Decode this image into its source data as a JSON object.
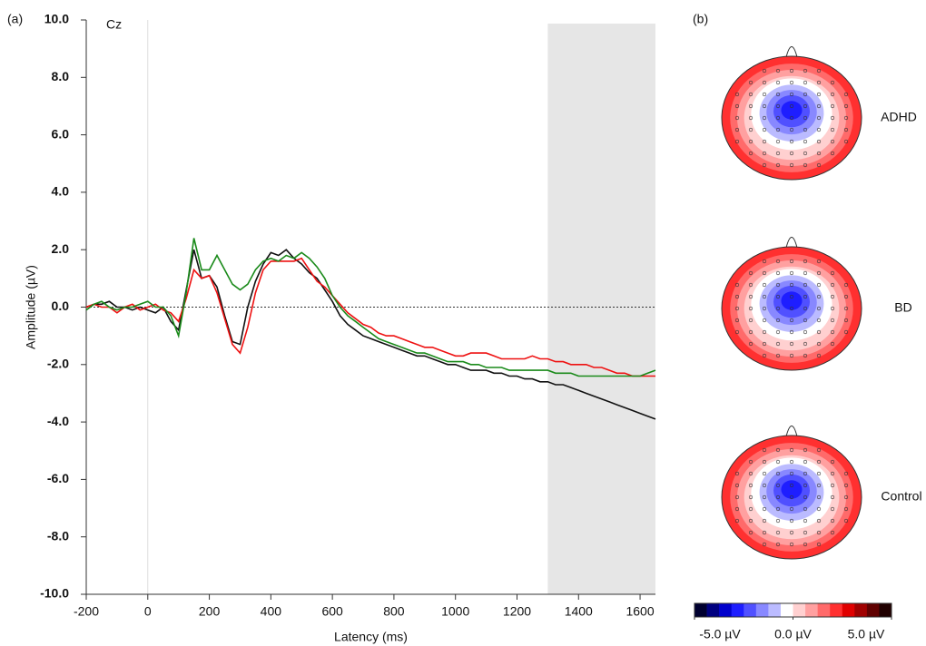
{
  "chart_data": [
    {
      "type": "line",
      "panel_label": "(a)",
      "annotation": "Cz",
      "xlabel": "Latency (ms)",
      "ylabel": "Amplitude (µV)",
      "x": [
        -200,
        -175,
        -150,
        -125,
        -100,
        -75,
        -50,
        -25,
        0,
        25,
        50,
        75,
        100,
        125,
        150,
        175,
        200,
        225,
        250,
        275,
        300,
        325,
        350,
        375,
        400,
        425,
        450,
        475,
        500,
        525,
        550,
        575,
        600,
        625,
        650,
        675,
        700,
        725,
        750,
        775,
        800,
        825,
        850,
        875,
        900,
        925,
        950,
        975,
        1000,
        1025,
        1050,
        1075,
        1100,
        1125,
        1150,
        1175,
        1200,
        1225,
        1250,
        1275,
        1300,
        1325,
        1350,
        1375,
        1400,
        1425,
        1450,
        1475,
        1500,
        1525,
        1550,
        1575,
        1600,
        1625,
        1650
      ],
      "series": [
        {
          "color": "#111111",
          "values": [
            0,
            0.1,
            0.1,
            0.2,
            0,
            0,
            -0.1,
            0,
            -0.1,
            -0.2,
            0,
            -0.5,
            -0.8,
            0.6,
            2.0,
            1.0,
            1.1,
            0.7,
            -0.3,
            -1.2,
            -1.3,
            0,
            0.9,
            1.5,
            1.9,
            1.8,
            2.0,
            1.7,
            1.5,
            1.2,
            1.0,
            0.6,
            0.2,
            -0.3,
            -0.6,
            -0.8,
            -1.0,
            -1.1,
            -1.2,
            -1.3,
            -1.4,
            -1.5,
            -1.6,
            -1.7,
            -1.7,
            -1.8,
            -1.9,
            -2.0,
            -2.0,
            -2.1,
            -2.2,
            -2.2,
            -2.2,
            -2.3,
            -2.3,
            -2.4,
            -2.4,
            -2.5,
            -2.5,
            -2.6,
            -2.6,
            -2.7,
            -2.7,
            -2.8,
            -2.9,
            -3.0,
            -3.1,
            -3.2,
            -3.3,
            -3.4,
            -3.5,
            -3.6,
            -3.7,
            -3.8,
            -3.9
          ]
        },
        {
          "color": "#ee1111",
          "values": [
            0,
            0.1,
            0,
            0,
            -0.2,
            0,
            0.1,
            -0.1,
            0,
            0.1,
            -0.1,
            -0.2,
            -0.5,
            0.3,
            1.3,
            1.0,
            1.1,
            0.5,
            -0.4,
            -1.3,
            -1.6,
            -0.7,
            0.5,
            1.3,
            1.6,
            1.6,
            1.6,
            1.6,
            1.7,
            1.3,
            0.9,
            0.7,
            0.4,
            0.1,
            -0.2,
            -0.4,
            -0.6,
            -0.7,
            -0.9,
            -1.0,
            -1.0,
            -1.1,
            -1.2,
            -1.3,
            -1.4,
            -1.4,
            -1.5,
            -1.6,
            -1.7,
            -1.7,
            -1.6,
            -1.6,
            -1.6,
            -1.7,
            -1.8,
            -1.8,
            -1.8,
            -1.8,
            -1.7,
            -1.8,
            -1.8,
            -1.9,
            -1.9,
            -2.0,
            -2.0,
            -2.0,
            -2.1,
            -2.1,
            -2.2,
            -2.3,
            -2.3,
            -2.4,
            -2.4,
            -2.4,
            -2.4
          ]
        },
        {
          "color": "#1a8a1a",
          "values": [
            -0.1,
            0.1,
            0.2,
            0,
            -0.1,
            0,
            0,
            0.1,
            0.2,
            0,
            0,
            -0.3,
            -1.0,
            0.5,
            2.4,
            1.3,
            1.3,
            1.8,
            1.3,
            0.8,
            0.6,
            0.8,
            1.3,
            1.6,
            1.7,
            1.6,
            1.8,
            1.7,
            1.9,
            1.7,
            1.4,
            1.0,
            0.4,
            0.0,
            -0.3,
            -0.5,
            -0.7,
            -0.9,
            -1.1,
            -1.2,
            -1.3,
            -1.4,
            -1.5,
            -1.6,
            -1.6,
            -1.7,
            -1.8,
            -1.9,
            -1.9,
            -1.9,
            -2.0,
            -2.0,
            -2.1,
            -2.1,
            -2.1,
            -2.2,
            -2.2,
            -2.2,
            -2.2,
            -2.2,
            -2.2,
            -2.3,
            -2.3,
            -2.3,
            -2.4,
            -2.4,
            -2.4,
            -2.4,
            -2.4,
            -2.4,
            -2.4,
            -2.4,
            -2.4,
            -2.3,
            -2.2
          ]
        }
      ],
      "shaded_region": [
        1300,
        1650
      ],
      "shade_color": "#e6e6e6",
      "xlim": [
        -200,
        1650
      ],
      "ylim": [
        -10,
        10
      ],
      "xticks": [
        -200,
        0,
        200,
        400,
        600,
        800,
        1000,
        1200,
        1400,
        1600
      ],
      "yticks": [
        {
          "value": 10,
          "label": "10.0"
        },
        {
          "value": 8,
          "label": "8.0"
        },
        {
          "value": 6,
          "label": "6.0"
        },
        {
          "value": 4,
          "label": "4.0"
        },
        {
          "value": 2,
          "label": "2.0"
        },
        {
          "value": 0,
          "label": "0.0"
        },
        {
          "value": -2,
          "label": "-2.0"
        },
        {
          "value": -4,
          "label": "-4.0"
        },
        {
          "value": -6,
          "label": "-6.0"
        },
        {
          "value": -8,
          "label": "-8.0"
        },
        {
          "value": -10,
          "label": "-10.0"
        }
      ]
    },
    {
      "type": "topomap",
      "panel_label": "(b)",
      "maps": [
        {
          "label": "ADHD"
        },
        {
          "label": "BD"
        },
        {
          "label": "Control"
        }
      ],
      "colors": [
        "#000030",
        "#000080",
        "#0000cc",
        "#1e1eff",
        "#5050ff",
        "#8888ff",
        "#bbbbff",
        "#ffffff",
        "#ffd0d0",
        "#ffa0a0",
        "#ff6a6a",
        "#ff3030",
        "#e00000",
        "#a00000",
        "#600000",
        "#200000"
      ],
      "clim": [
        -5,
        5
      ],
      "cticks": [
        {
          "value": -5,
          "label": "-5.0 µV"
        },
        {
          "value": 0,
          "label": "0.0 µV"
        },
        {
          "value": 5,
          "label": "5.0 µV"
        }
      ]
    }
  ]
}
